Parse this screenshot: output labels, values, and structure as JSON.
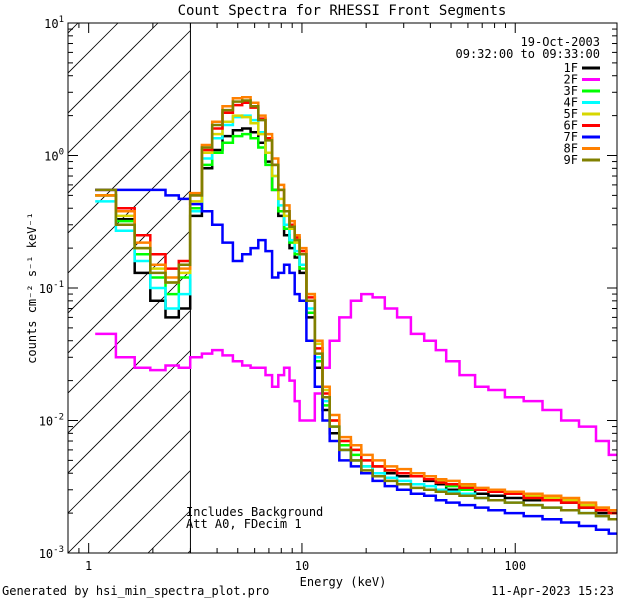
{
  "chart_data": {
    "type": "line",
    "title": "Count Spectra for RHESSI Front Segments",
    "xlabel": "Energy (keV)",
    "ylabel": "counts cm⁻² s⁻¹ keV⁻¹",
    "xscale": "log",
    "yscale": "log",
    "xlim": [
      0.8,
      300
    ],
    "ylim": [
      0.001,
      10
    ],
    "x_ticks": [
      {
        "value": 1,
        "label": "1"
      },
      {
        "value": 10,
        "label": "10"
      },
      {
        "value": 100,
        "label": "100"
      }
    ],
    "y_ticks": [
      {
        "value": 0.001,
        "base": "10",
        "exp": "-3"
      },
      {
        "value": 0.01,
        "base": "10",
        "exp": "-2"
      },
      {
        "value": 0.1,
        "base": "10",
        "exp": "-1"
      },
      {
        "value": 1,
        "base": "10",
        "exp": "0"
      },
      {
        "value": 10,
        "base": "10",
        "exp": "1"
      }
    ],
    "hatched_region": [
      0.8,
      3.0
    ],
    "date": "19-Oct-2003",
    "time_range": "09:32:00 to 09:33:00",
    "annotation_lines": [
      "Includes Background",
      "Att A0, FDecim 1"
    ],
    "legend_position": "top-right",
    "energies": [
      1.2,
      1.5,
      1.8,
      2.1,
      2.5,
      2.8,
      3.2,
      3.6,
      4.0,
      4.5,
      5.0,
      5.5,
      6.0,
      6.5,
      7.0,
      7.5,
      8.0,
      8.5,
      9.0,
      9.5,
      10.0,
      11.0,
      12.0,
      13.0,
      14.0,
      16.0,
      18.0,
      20.0,
      23.0,
      26.0,
      30.0,
      35.0,
      40.0,
      45.0,
      50.0,
      60.0,
      70.0,
      80.0,
      100.0,
      120.0,
      150.0,
      180.0,
      220.0,
      260.0,
      290.0
    ],
    "series": [
      {
        "name": "1F",
        "color": "#000000",
        "values": [
          0.5,
          0.33,
          0.13,
          0.08,
          0.06,
          0.07,
          0.35,
          0.8,
          1.1,
          1.4,
          1.55,
          1.6,
          1.5,
          1.25,
          0.9,
          0.55,
          0.35,
          0.25,
          0.2,
          0.17,
          0.13,
          0.06,
          0.025,
          0.012,
          0.008,
          0.006,
          0.005,
          0.004,
          0.0045,
          0.004,
          0.0038,
          0.004,
          0.0035,
          0.0033,
          0.003,
          0.003,
          0.0028,
          0.0027,
          0.0026,
          0.0025,
          0.0025,
          0.0024,
          0.0022,
          0.002,
          0.002
        ]
      },
      {
        "name": "2F",
        "color": "#ff00ff",
        "values": [
          0.045,
          0.03,
          0.025,
          0.024,
          0.026,
          0.025,
          0.03,
          0.032,
          0.034,
          0.031,
          0.028,
          0.026,
          0.025,
          0.025,
          0.022,
          0.018,
          0.022,
          0.025,
          0.02,
          0.014,
          0.01,
          0.01,
          0.016,
          0.025,
          0.04,
          0.06,
          0.08,
          0.09,
          0.085,
          0.07,
          0.06,
          0.045,
          0.04,
          0.034,
          0.028,
          0.022,
          0.018,
          0.017,
          0.015,
          0.014,
          0.012,
          0.01,
          0.009,
          0.007,
          0.0055
        ]
      },
      {
        "name": "3F",
        "color": "#00ff00",
        "values": [
          0.5,
          0.32,
          0.18,
          0.12,
          0.09,
          0.12,
          0.4,
          0.85,
          1.05,
          1.25,
          1.4,
          1.45,
          1.35,
          1.15,
          0.85,
          0.55,
          0.38,
          0.28,
          0.22,
          0.18,
          0.14,
          0.065,
          0.028,
          0.013,
          0.009,
          0.0065,
          0.0055,
          0.0045,
          0.004,
          0.0042,
          0.004,
          0.0038,
          0.0036,
          0.0034,
          0.0032,
          0.003,
          0.003,
          0.0029,
          0.0028,
          0.0026,
          0.0025,
          0.0025,
          0.0023,
          0.0021,
          0.002
        ]
      },
      {
        "name": "4F",
        "color": "#00ffff",
        "values": [
          0.45,
          0.27,
          0.16,
          0.1,
          0.07,
          0.09,
          0.38,
          0.95,
          1.35,
          1.7,
          1.95,
          2.0,
          1.85,
          1.5,
          1.05,
          0.7,
          0.42,
          0.3,
          0.23,
          0.19,
          0.15,
          0.07,
          0.03,
          0.014,
          0.009,
          0.006,
          0.005,
          0.0045,
          0.004,
          0.0037,
          0.0035,
          0.0033,
          0.0032,
          0.003,
          0.0029,
          0.0028,
          0.0026,
          0.0025,
          0.0024,
          0.0023,
          0.0022,
          0.0021,
          0.002,
          0.0019,
          0.0018
        ]
      },
      {
        "name": "5F",
        "color": "#d7d700",
        "values": [
          0.5,
          0.35,
          0.2,
          0.14,
          0.11,
          0.13,
          0.45,
          1.05,
          1.45,
          1.8,
          2.0,
          1.95,
          1.75,
          1.45,
          1.05,
          0.7,
          0.47,
          0.35,
          0.28,
          0.22,
          0.19,
          0.09,
          0.038,
          0.017,
          0.01,
          0.007,
          0.006,
          0.005,
          0.0045,
          0.0042,
          0.004,
          0.0038,
          0.0036,
          0.0035,
          0.0033,
          0.0032,
          0.003,
          0.0029,
          0.0028,
          0.0027,
          0.0026,
          0.0025,
          0.0023,
          0.0022,
          0.002
        ]
      },
      {
        "name": "6F",
        "color": "#ff0000",
        "values": [
          0.55,
          0.4,
          0.25,
          0.18,
          0.14,
          0.16,
          0.5,
          1.1,
          1.6,
          2.1,
          2.4,
          2.5,
          2.3,
          1.9,
          1.35,
          0.85,
          0.55,
          0.38,
          0.3,
          0.24,
          0.19,
          0.085,
          0.035,
          0.016,
          0.01,
          0.007,
          0.006,
          0.005,
          0.0045,
          0.0042,
          0.004,
          0.0038,
          0.0036,
          0.0034,
          0.0033,
          0.0031,
          0.003,
          0.0029,
          0.0028,
          0.0026,
          0.0025,
          0.0024,
          0.0022,
          0.0021,
          0.002
        ]
      },
      {
        "name": "7F",
        "color": "#0000ff",
        "values": [
          0.55,
          0.55,
          0.55,
          0.55,
          0.5,
          0.47,
          0.43,
          0.38,
          0.3,
          0.22,
          0.16,
          0.18,
          0.2,
          0.23,
          0.19,
          0.12,
          0.13,
          0.15,
          0.13,
          0.09,
          0.08,
          0.04,
          0.018,
          0.01,
          0.007,
          0.005,
          0.0045,
          0.004,
          0.0035,
          0.0032,
          0.003,
          0.0028,
          0.0027,
          0.0025,
          0.0024,
          0.0023,
          0.0022,
          0.0021,
          0.002,
          0.0019,
          0.0018,
          0.0017,
          0.0016,
          0.0015,
          0.0014
        ]
      },
      {
        "name": "8F",
        "color": "#ff8000",
        "values": [
          0.5,
          0.38,
          0.22,
          0.15,
          0.12,
          0.14,
          0.52,
          1.2,
          1.8,
          2.35,
          2.7,
          2.75,
          2.5,
          2.0,
          1.45,
          0.95,
          0.6,
          0.42,
          0.32,
          0.25,
          0.2,
          0.09,
          0.04,
          0.018,
          0.011,
          0.0075,
          0.0065,
          0.0055,
          0.005,
          0.0045,
          0.0043,
          0.004,
          0.0038,
          0.0036,
          0.0035,
          0.0033,
          0.0031,
          0.003,
          0.0029,
          0.0028,
          0.0027,
          0.0026,
          0.0024,
          0.0022,
          0.0021
        ]
      },
      {
        "name": "9F",
        "color": "#808000",
        "values": [
          0.55,
          0.3,
          0.2,
          0.13,
          0.11,
          0.15,
          0.5,
          1.15,
          1.7,
          2.2,
          2.55,
          2.6,
          2.35,
          1.85,
          1.3,
          0.85,
          0.55,
          0.38,
          0.29,
          0.23,
          0.18,
          0.08,
          0.032,
          0.015,
          0.009,
          0.006,
          0.005,
          0.0042,
          0.0038,
          0.0035,
          0.0033,
          0.0031,
          0.003,
          0.0029,
          0.0028,
          0.0027,
          0.0026,
          0.0025,
          0.0024,
          0.0023,
          0.0022,
          0.0021,
          0.002,
          0.0019,
          0.0018
        ]
      }
    ]
  },
  "footer": {
    "left": "Generated by hsi_min_spectra_plot.pro",
    "right": "11-Apr-2023 15:23"
  }
}
